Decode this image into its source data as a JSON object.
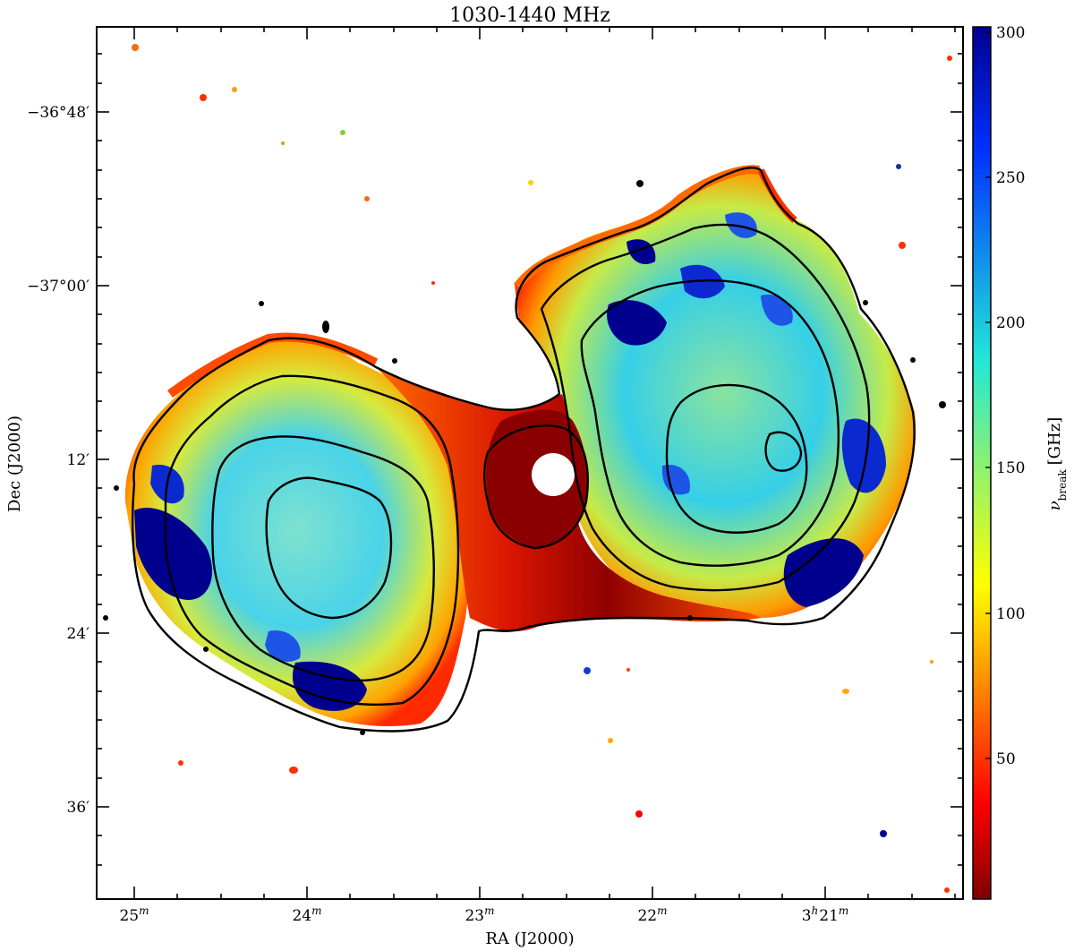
{
  "chart_data": {
    "type": "heatmap",
    "title": "1030-1440 MHz",
    "xlabel": "RA (J2000)",
    "ylabel": "Dec (J2000)",
    "x_ticks": [
      {
        "label_main": "25",
        "label_sup": "m",
        "value_min": 25
      },
      {
        "label_main": "24",
        "label_sup": "m",
        "value_min": 24
      },
      {
        "label_main": "23",
        "label_sup": "m",
        "value_min": 23
      },
      {
        "label_main": "22",
        "label_sup": "m",
        "value_min": 22
      },
      {
        "label_main": "3",
        "label_sup": "h",
        "label_main2": "21",
        "label_sup2": "m",
        "value_min": 21
      }
    ],
    "y_ticks": [
      {
        "label": "−36°48′",
        "value_arcmin": -48
      },
      {
        "label": "−37°00′",
        "value_arcmin": -60
      },
      {
        "label": "12′",
        "value_arcmin": -72
      },
      {
        "label": "24′",
        "value_arcmin": -84
      },
      {
        "label": "36′",
        "value_arcmin": -96
      }
    ],
    "colorbar": {
      "label_main": "ν",
      "label_sub": "break",
      "label_unit": "[GHz]",
      "min": 0,
      "max": 300,
      "ticks": [
        50,
        100,
        150,
        200,
        250,
        300
      ],
      "colormap": "jet_reversed"
    },
    "colors": {
      "dark_red": "#7f0000",
      "red": "#ff0000",
      "orange": "#ff8c00",
      "yellow": "#ffee00",
      "cyan": "#28e4d6",
      "blue": "#1050e0",
      "navy": "#00008f",
      "contour": "#000000"
    }
  }
}
